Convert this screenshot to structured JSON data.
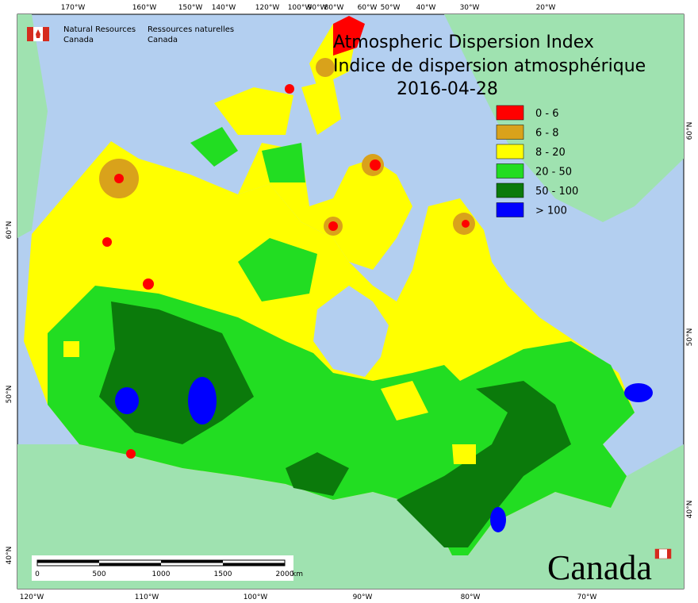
{
  "header": {
    "agency_en": [
      "Natural Resources",
      "Canada"
    ],
    "agency_fr": [
      "Ressources naturelles",
      "Canada"
    ]
  },
  "title": [
    "Atmospheric Dispersion Index",
    "Indice de dispersion atmosphérique",
    "2016-04-28"
  ],
  "legend": [
    {
      "label": "0 - 6",
      "color": "#ff0000"
    },
    {
      "label": "6 - 8",
      "color": "#d9a21b"
    },
    {
      "label": "8 - 20",
      "color": "#ffff00"
    },
    {
      "label": "20 - 50",
      "color": "#22dd22"
    },
    {
      "label": "50 - 100",
      "color": "#0b7a0b"
    },
    {
      "label": "> 100",
      "color": "#0000ff"
    }
  ],
  "top_longitudes": [
    "170°W",
    "160°W",
    "150°W",
    "140°W",
    "120°W",
    "100°W",
    "90°W",
    "80°W",
    "60°W",
    "50°W",
    "40°W",
    "30°W",
    "20°W"
  ],
  "bottom_longitudes": [
    "120°W",
    "110°W",
    "100°W",
    "90°W",
    "80°W",
    "70°W"
  ],
  "left_latitudes": [
    "60°N",
    "50°N",
    "40°N"
  ],
  "right_latitudes": [
    "60°N",
    "50°N",
    "40°N"
  ],
  "scale_bar": {
    "ticks": [
      "0",
      "500",
      "1000",
      "1500",
      "2000"
    ],
    "unit": "km"
  },
  "wordmark": "Canada"
}
